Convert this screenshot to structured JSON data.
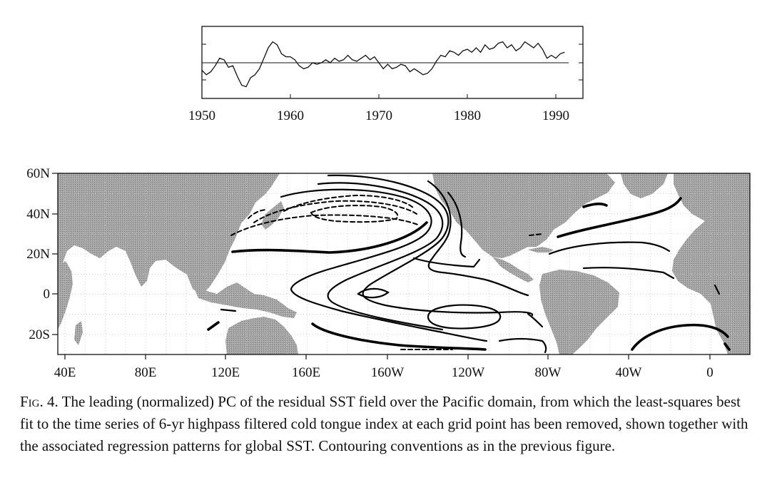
{
  "top_chart": {
    "chart_data": {
      "type": "line",
      "title": "",
      "xlabel": "",
      "ylabel": "",
      "xlim": [
        1950,
        1993
      ],
      "ylim": [
        -2,
        2
      ],
      "x_ticks": [
        "1950",
        "1960",
        "1970",
        "1980",
        "1990"
      ],
      "zero_line": true,
      "series": [
        {
          "name": "",
          "x": [
            1950,
            1950.5,
            1951,
            1951.5,
            1952,
            1952.5,
            1953,
            1953.5,
            1954,
            1954.5,
            1955,
            1955.5,
            1956,
            1956.5,
            1957,
            1957.5,
            1958,
            1958.5,
            1959,
            1959.5,
            1960,
            1960.5,
            1961,
            1961.5,
            1962,
            1962.5,
            1963,
            1963.5,
            1964,
            1964.5,
            1965,
            1965.5,
            1966,
            1966.5,
            1967,
            1967.5,
            1968,
            1968.5,
            1969,
            1969.5,
            1970,
            1970.5,
            1971,
            1971.5,
            1972,
            1972.5,
            1973,
            1973.5,
            1974,
            1974.5,
            1975,
            1975.5,
            1976,
            1976.5,
            1977,
            1977.5,
            1978,
            1978.5,
            1979,
            1979.5,
            1980,
            1980.5,
            1981,
            1981.5,
            1982,
            1982.5,
            1983,
            1983.5,
            1984,
            1984.5,
            1985,
            1985.5,
            1986,
            1986.5,
            1987,
            1987.5,
            1988,
            1988.5,
            1989,
            1989.5,
            1990,
            1990.5,
            1991
          ],
          "values": [
            -0.5,
            -0.8,
            -0.6,
            -0.2,
            0.3,
            0.2,
            -0.3,
            -0.2,
            -0.9,
            -1.5,
            -1.6,
            -1.0,
            -0.8,
            -0.4,
            0.3,
            1.0,
            1.4,
            1.2,
            0.6,
            0.4,
            0.4,
            0.2,
            -0.2,
            -0.4,
            -0.3,
            0.0,
            -0.1,
            0.0,
            0.2,
            0.0,
            0.3,
            0.1,
            0.2,
            0.5,
            0.2,
            0.1,
            0.3,
            0.5,
            0.2,
            0.4,
            0.0,
            -0.4,
            -0.1,
            -0.4,
            -0.3,
            -0.1,
            -0.2,
            -0.6,
            -0.4,
            -0.6,
            -0.8,
            -0.7,
            -0.4,
            0.1,
            0.5,
            0.4,
            0.8,
            0.7,
            0.5,
            0.8,
            0.9,
            0.7,
            1.0,
            0.7,
            1.2,
            0.9,
            1.0,
            1.3,
            1.4,
            1.0,
            1.2,
            0.8,
            1.0,
            1.4,
            1.2,
            1.0,
            1.3,
            0.9,
            0.3,
            0.5,
            0.3,
            0.6,
            0.7
          ]
        }
      ]
    }
  },
  "map": {
    "lat_ticks": [
      "60N",
      "40N",
      "20N",
      "0",
      "20S"
    ],
    "lon_ticks": [
      "40E",
      "80E",
      "120E",
      "160E",
      "160W",
      "120W",
      "80W",
      "40W",
      "0"
    ],
    "land_color": "#9a9a9a",
    "contour_color": "#000000"
  },
  "caption": {
    "figure_label": "Fig. 4.",
    "text": " The leading (normalized) PC of the residual SST field over the Pacific domain, from which the least-squares best fit to the time series of 6-yr highpass filtered cold tongue index at each grid point has been removed, shown together with the associated regression patterns for global SST. Contouring conventions as in the previous figure."
  }
}
